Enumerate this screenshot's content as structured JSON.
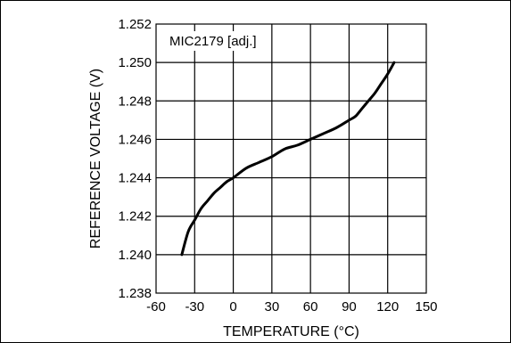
{
  "chart_data": {
    "type": "line",
    "title": "",
    "xlabel": "TEMPERATURE (°C)",
    "ylabel": "REFERENCE VOLTAGE (V)",
    "legend_label": "MIC2179 [adj.]",
    "xlim": [
      -60,
      150
    ],
    "ylim": [
      1.238,
      1.252
    ],
    "x_ticks": [
      -60,
      -30,
      0,
      30,
      60,
      90,
      120,
      150
    ],
    "y_ticks": [
      1.238,
      1.24,
      1.242,
      1.244,
      1.246,
      1.248,
      1.25,
      1.252
    ],
    "x_tick_labels": [
      "-60",
      "-30",
      "0",
      "30",
      "60",
      "90",
      "120",
      "150"
    ],
    "y_tick_labels": [
      "1.238",
      "1.240",
      "1.242",
      "1.244",
      "1.246",
      "1.248",
      "1.250",
      "1.252"
    ],
    "grid": true,
    "series": [
      {
        "x": [
          -40,
          -35,
          -30,
          -25,
          -20,
          -15,
          -10,
          -5,
          0,
          10,
          20,
          30,
          40,
          50,
          60,
          70,
          80,
          90,
          95,
          100,
          105,
          110,
          115,
          120,
          125
        ],
        "y": [
          1.24,
          1.2412,
          1.2418,
          1.2424,
          1.2428,
          1.2432,
          1.2435,
          1.2438,
          1.244,
          1.2445,
          1.2448,
          1.2451,
          1.2455,
          1.2457,
          1.246,
          1.2463,
          1.2466,
          1.247,
          1.2472,
          1.2476,
          1.248,
          1.2484,
          1.2489,
          1.2494,
          1.25
        ]
      }
    ]
  }
}
